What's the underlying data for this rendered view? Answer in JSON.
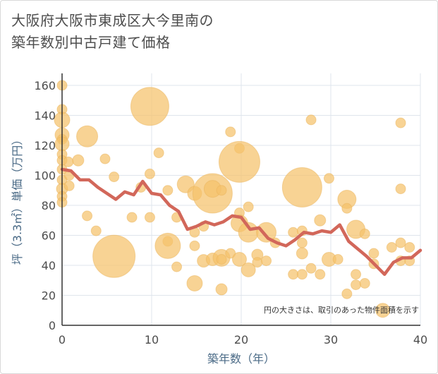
{
  "title_line1": "大阪府大阪市東成区大今里南の",
  "title_line2": "築年数別中古戸建て価格",
  "chart_data": {
    "type": "scatter",
    "xlabel": "築年数（年）",
    "ylabel": "坪（3.3㎡）単価（万円）",
    "xlim": [
      0,
      40
    ],
    "ylim": [
      0,
      168
    ],
    "x_ticks": [
      0,
      10,
      20,
      30,
      40
    ],
    "y_ticks": [
      0,
      20,
      40,
      60,
      80,
      100,
      120,
      140,
      160
    ],
    "grid": true,
    "note": "円の大きさは、取引のあった物件面積を示す",
    "colors": {
      "bubble": "#f5c26b",
      "bubble_stroke": "#e9b45c",
      "line": "#d2675a",
      "grid": "#dfe5ec",
      "axis": "#333333"
    },
    "bubbles": [
      {
        "x": 0,
        "y": 160,
        "s": 7
      },
      {
        "x": 0,
        "y": 144,
        "s": 7
      },
      {
        "x": 0,
        "y": 137,
        "s": 11
      },
      {
        "x": 0,
        "y": 127,
        "s": 10
      },
      {
        "x": 0,
        "y": 124,
        "s": 7
      },
      {
        "x": 0,
        "y": 121,
        "s": 10
      },
      {
        "x": 0,
        "y": 114,
        "s": 7
      },
      {
        "x": 0,
        "y": 110,
        "s": 7
      },
      {
        "x": 0,
        "y": 104,
        "s": 7
      },
      {
        "x": 0,
        "y": 97,
        "s": 7
      },
      {
        "x": 0,
        "y": 91,
        "s": 8
      },
      {
        "x": 0,
        "y": 86,
        "s": 7
      },
      {
        "x": 0,
        "y": 82,
        "s": 7
      },
      {
        "x": 0.7,
        "y": 109,
        "s": 7
      },
      {
        "x": 0.8,
        "y": 93,
        "s": 7
      },
      {
        "x": 0.8,
        "y": 100,
        "s": 7
      },
      {
        "x": 1.8,
        "y": 110,
        "s": 8
      },
      {
        "x": 2.8,
        "y": 126,
        "s": 15
      },
      {
        "x": 2.8,
        "y": 73,
        "s": 7
      },
      {
        "x": 3.8,
        "y": 63,
        "s": 7
      },
      {
        "x": 4.8,
        "y": 111,
        "s": 7
      },
      {
        "x": 5.8,
        "y": 99,
        "s": 7
      },
      {
        "x": 5.8,
        "y": 46,
        "s": 30
      },
      {
        "x": 7.8,
        "y": 72,
        "s": 7
      },
      {
        "x": 8.8,
        "y": 92,
        "s": 7
      },
      {
        "x": 9.8,
        "y": 146,
        "s": 27
      },
      {
        "x": 9.8,
        "y": 101,
        "s": 7
      },
      {
        "x": 9.8,
        "y": 72,
        "s": 7
      },
      {
        "x": 10.8,
        "y": 115,
        "s": 7
      },
      {
        "x": 11.8,
        "y": 90,
        "s": 7
      },
      {
        "x": 11.8,
        "y": 56,
        "s": 7
      },
      {
        "x": 11.8,
        "y": 53,
        "s": 18
      },
      {
        "x": 12.8,
        "y": 72,
        "s": 7
      },
      {
        "x": 12.8,
        "y": 39,
        "s": 7
      },
      {
        "x": 13.8,
        "y": 94,
        "s": 12
      },
      {
        "x": 14.8,
        "y": 88,
        "s": 10
      },
      {
        "x": 14.8,
        "y": 62,
        "s": 7
      },
      {
        "x": 14.8,
        "y": 53,
        "s": 7
      },
      {
        "x": 14.8,
        "y": 28,
        "s": 11
      },
      {
        "x": 15.8,
        "y": 66,
        "s": 7
      },
      {
        "x": 15.8,
        "y": 43,
        "s": 9
      },
      {
        "x": 16.8,
        "y": 88,
        "s": 28
      },
      {
        "x": 16.8,
        "y": 91,
        "s": 12
      },
      {
        "x": 16.8,
        "y": 44,
        "s": 9
      },
      {
        "x": 17.8,
        "y": 90,
        "s": 7
      },
      {
        "x": 17.8,
        "y": 45,
        "s": 12
      },
      {
        "x": 17.8,
        "y": 44,
        "s": 7
      },
      {
        "x": 17.8,
        "y": 24,
        "s": 8
      },
      {
        "x": 18.8,
        "y": 129,
        "s": 7
      },
      {
        "x": 18.8,
        "y": 48,
        "s": 7
      },
      {
        "x": 19.8,
        "y": 118,
        "s": 7
      },
      {
        "x": 19.8,
        "y": 109,
        "s": 29
      },
      {
        "x": 19.8,
        "y": 75,
        "s": 7
      },
      {
        "x": 19.8,
        "y": 68,
        "s": 12
      },
      {
        "x": 19.8,
        "y": 44,
        "s": 10
      },
      {
        "x": 20.8,
        "y": 79,
        "s": 7
      },
      {
        "x": 20.8,
        "y": 62,
        "s": 14
      },
      {
        "x": 20.8,
        "y": 37,
        "s": 10
      },
      {
        "x": 21.8,
        "y": 47,
        "s": 8
      },
      {
        "x": 21.8,
        "y": 42,
        "s": 7
      },
      {
        "x": 22.8,
        "y": 62,
        "s": 14
      },
      {
        "x": 22.8,
        "y": 43,
        "s": 7
      },
      {
        "x": 23.8,
        "y": 55,
        "s": 7
      },
      {
        "x": 25.8,
        "y": 62,
        "s": 7
      },
      {
        "x": 25.8,
        "y": 34,
        "s": 7
      },
      {
        "x": 26.8,
        "y": 92,
        "s": 28
      },
      {
        "x": 26.8,
        "y": 63,
        "s": 7
      },
      {
        "x": 26.8,
        "y": 55,
        "s": 7
      },
      {
        "x": 26.8,
        "y": 48,
        "s": 8
      },
      {
        "x": 26.8,
        "y": 34,
        "s": 7
      },
      {
        "x": 27.8,
        "y": 137,
        "s": 7
      },
      {
        "x": 27.8,
        "y": 38,
        "s": 7
      },
      {
        "x": 28.8,
        "y": 70,
        "s": 8
      },
      {
        "x": 28.8,
        "y": 34,
        "s": 7
      },
      {
        "x": 29.8,
        "y": 98,
        "s": 7
      },
      {
        "x": 29.8,
        "y": 44,
        "s": 10
      },
      {
        "x": 30.8,
        "y": 44,
        "s": 7
      },
      {
        "x": 31.8,
        "y": 84,
        "s": 13
      },
      {
        "x": 31.8,
        "y": 78,
        "s": 7
      },
      {
        "x": 31.8,
        "y": 21,
        "s": 7
      },
      {
        "x": 32.8,
        "y": 64,
        "s": 13
      },
      {
        "x": 32.8,
        "y": 34,
        "s": 7
      },
      {
        "x": 32.8,
        "y": 27,
        "s": 7
      },
      {
        "x": 33.8,
        "y": 61,
        "s": 7
      },
      {
        "x": 33.8,
        "y": 28,
        "s": 7
      },
      {
        "x": 34.8,
        "y": 48,
        "s": 7
      },
      {
        "x": 34.8,
        "y": 41,
        "s": 7
      },
      {
        "x": 35.8,
        "y": 10,
        "s": 10
      },
      {
        "x": 36.8,
        "y": 52,
        "s": 7
      },
      {
        "x": 37.8,
        "y": 135,
        "s": 7
      },
      {
        "x": 37.8,
        "y": 91,
        "s": 7
      },
      {
        "x": 37.8,
        "y": 55,
        "s": 7
      },
      {
        "x": 37.8,
        "y": 43,
        "s": 7
      },
      {
        "x": 38.8,
        "y": 52,
        "s": 7
      },
      {
        "x": 38.8,
        "y": 43,
        "s": 7
      }
    ],
    "trend": {
      "x": [
        0,
        1,
        2,
        3,
        4,
        5,
        6,
        7,
        8,
        9,
        10,
        11,
        12,
        13,
        14,
        15,
        16,
        17,
        18,
        19,
        20,
        21,
        22,
        23,
        24,
        25,
        26,
        27,
        28,
        29,
        30,
        31,
        32,
        33,
        34,
        35,
        36,
        37,
        38,
        39,
        40
      ],
      "y": [
        104,
        103,
        97,
        97,
        92,
        88,
        84,
        89,
        87,
        96,
        88,
        87,
        80,
        76,
        64,
        66,
        69,
        67,
        69,
        73,
        72,
        64,
        65,
        58,
        55,
        53,
        57,
        62,
        61,
        63,
        62,
        67,
        56,
        51,
        46,
        40,
        34,
        42,
        45,
        45,
        50
      ]
    }
  }
}
